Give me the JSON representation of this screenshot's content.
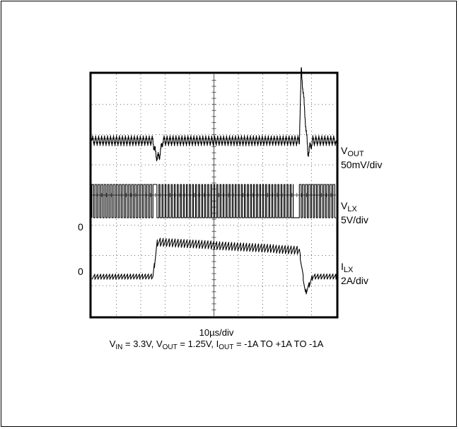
{
  "chart_data": {
    "type": "line",
    "title": "",
    "grid": true,
    "divisions": {
      "x": 10,
      "y": 8
    },
    "x": {
      "label": "10µs/div",
      "units_per_div": 10,
      "unit": "µs",
      "range": [
        0,
        100
      ]
    },
    "traces": [
      {
        "name_main": "V",
        "name_sub": "OUT",
        "scale": "50mV/div",
        "baseline_div": 5.8,
        "zero_label": "",
        "description": "ripple with dip at load step up, spike at load step down",
        "events_div": [
          {
            "t": 2.5,
            "kind": "dip",
            "size": -0.55
          },
          {
            "t": 8.5,
            "kind": "spike",
            "size": 2.4
          }
        ]
      },
      {
        "name_main": "V",
        "name_sub": "LX",
        "scale": "5V/div",
        "baseline_div": 3.8,
        "zero_label": "0",
        "description": "switching waveform, amplitude ~1 div, pulses change at load steps",
        "events_div": [
          {
            "t": 2.5,
            "kind": "step"
          },
          {
            "t": 8.5,
            "kind": "step"
          }
        ]
      },
      {
        "name_main": "I",
        "name_sub": "LX",
        "scale": "2A/div",
        "baseline_div": 1.3,
        "zero_label": "0",
        "description": "-1A to +1A to -1A inductor current with ripple",
        "levels_A": [
          -1,
          1,
          -1
        ],
        "events_div": [
          {
            "t": 2.5,
            "kind": "rise"
          },
          {
            "t": 8.5,
            "kind": "fall"
          }
        ]
      }
    ],
    "conditions": {
      "vin_main": "V",
      "vin_sub": "IN",
      "vin_value": " = 3.3V, ",
      "vout_main": "V",
      "vout_sub": "OUT",
      "vout_value": " = 1.25V, ",
      "iout_main": "I",
      "iout_sub": "OUT",
      "iout_value": " = -1A TO +1A TO -1A"
    }
  }
}
